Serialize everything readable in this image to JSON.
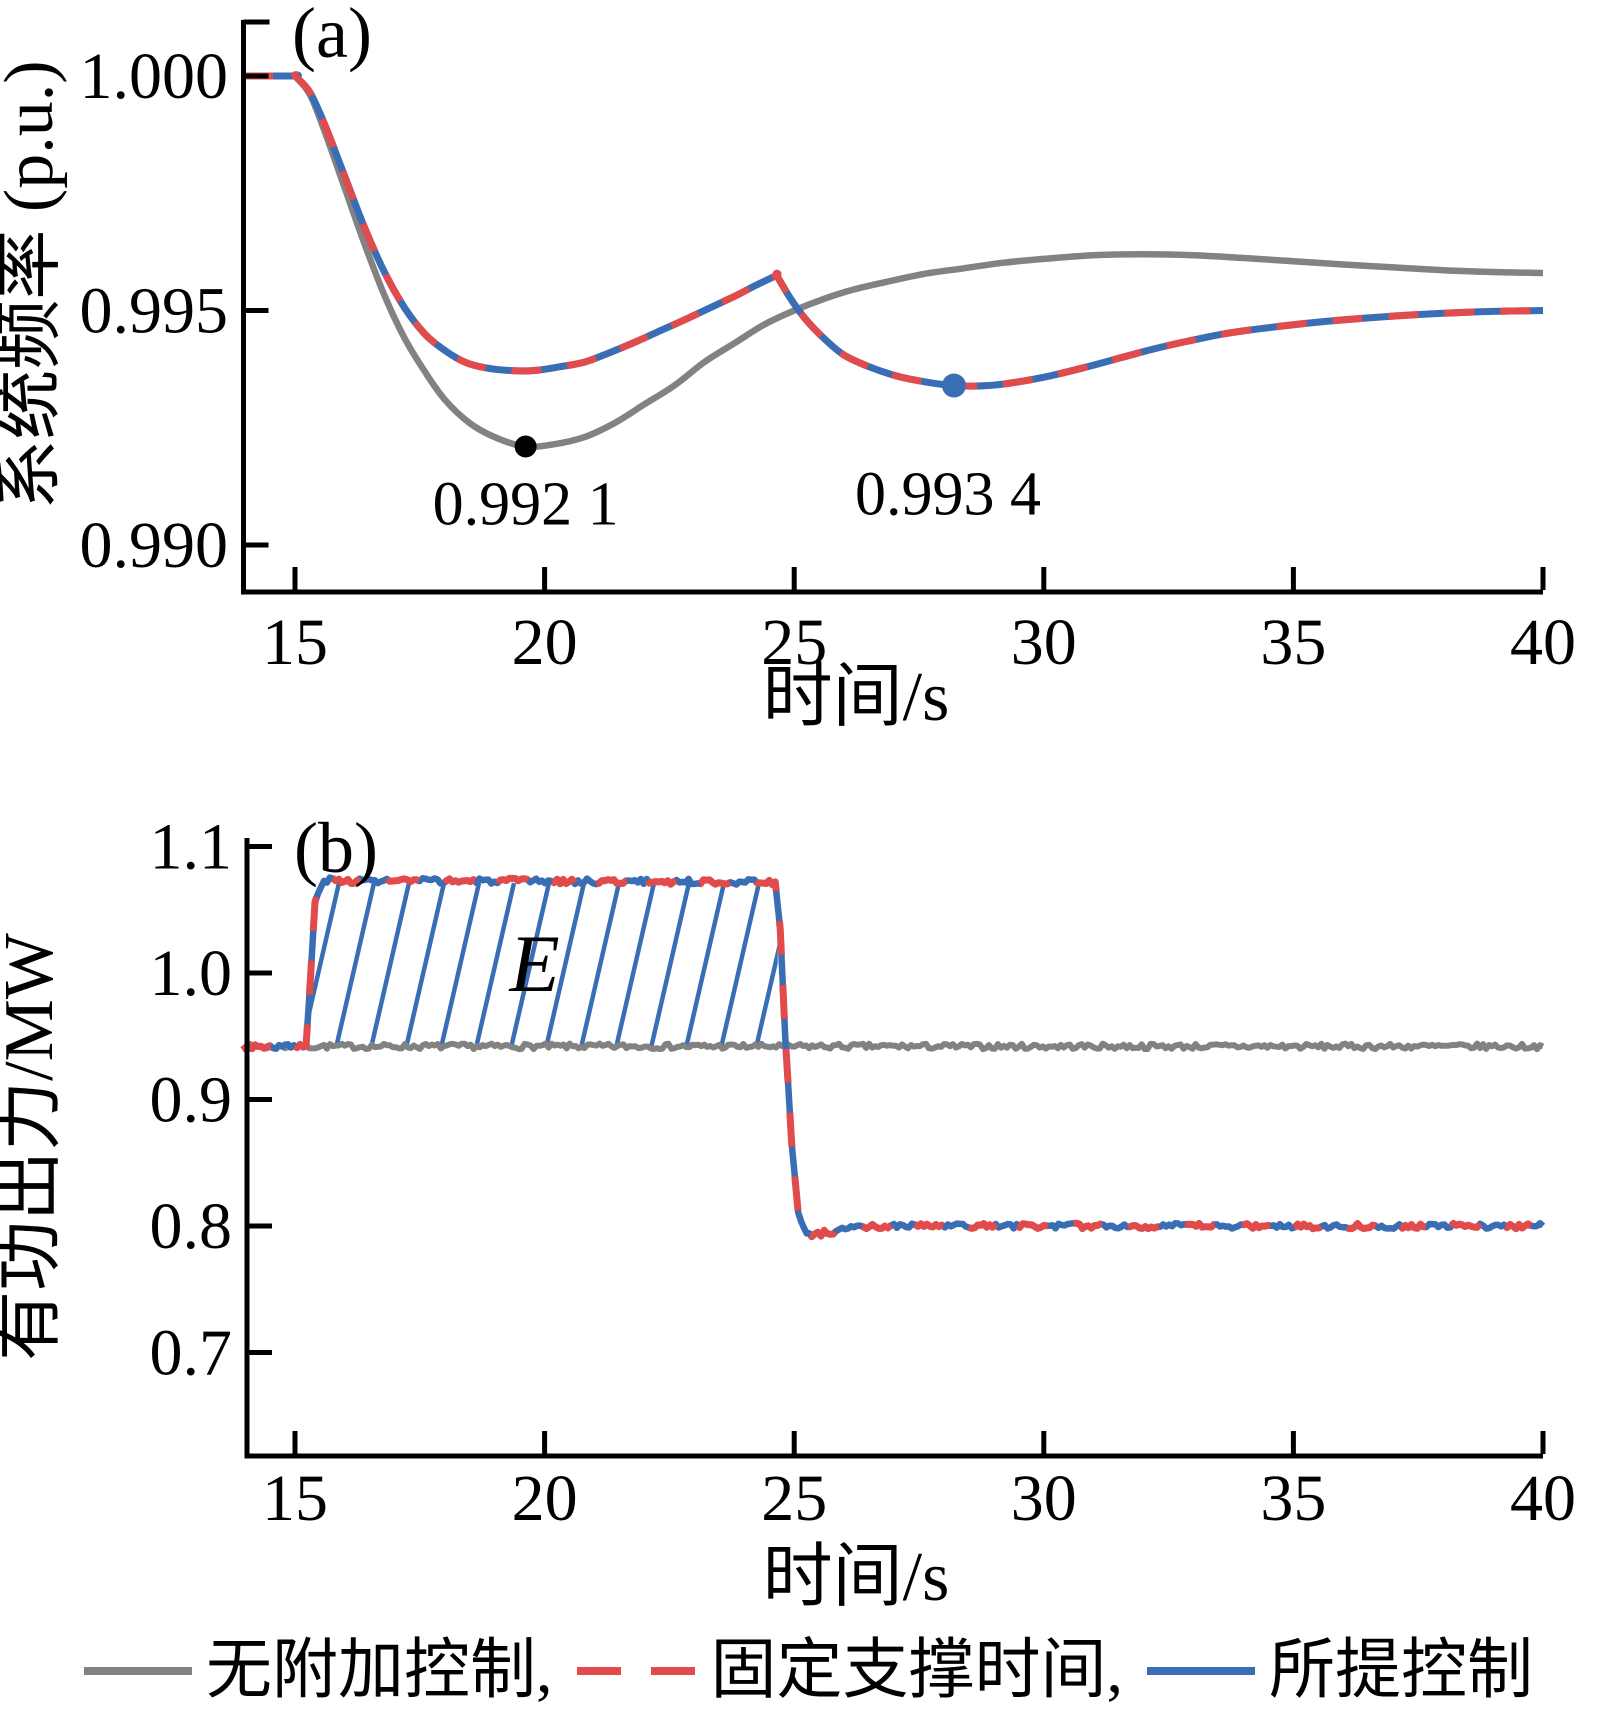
{
  "figure": {
    "background": "#ffffff"
  },
  "colors": {
    "no_control": "#828282",
    "fixed_time": "#e14b4b",
    "proposed": "#3a6eb4",
    "black": "#000000"
  },
  "legend": {
    "items": [
      {
        "key": "no_control",
        "style": "solid",
        "label": "无附加控制,"
      },
      {
        "key": "fixed_time",
        "style": "dashed",
        "label": "固定支撑时间,"
      },
      {
        "key": "proposed",
        "style": "solid",
        "label": "所提控制"
      }
    ]
  },
  "chart_data": [
    {
      "subplot_label": "(a)",
      "type": "line",
      "xlabel": "时间/s",
      "ylabel": "系统频率 (p.u.)",
      "xlim": [
        13.96,
        40
      ],
      "ylim": [
        0.989,
        1.0012
      ],
      "grid": false,
      "xticks": [
        {
          "value": 15,
          "label": "15"
        },
        {
          "value": 20,
          "label": "20"
        },
        {
          "value": 25,
          "label": "25"
        },
        {
          "value": 30,
          "label": "30"
        },
        {
          "value": 35,
          "label": "35"
        },
        {
          "value": 40,
          "label": "40"
        }
      ],
      "yticks": [
        {
          "value": 1.0,
          "label": "1.000"
        },
        {
          "value": 0.995,
          "label": "0.995"
        },
        {
          "value": 0.99,
          "label": "0.990"
        }
      ],
      "series": [
        {
          "name": "无附加控制",
          "key": "no_control",
          "smooth": true,
          "width": 6.5,
          "points": [
            [
              13.96,
              1.0
            ],
            [
              15,
              1.0
            ],
            [
              15,
              1.0
            ],
            [
              15.3,
              0.9996
            ],
            [
              15.6,
              0.9988
            ],
            [
              16,
              0.9976
            ],
            [
              16.4,
              0.9964
            ],
            [
              16.8,
              0.9953
            ],
            [
              17.2,
              0.9944
            ],
            [
              17.6,
              0.9937
            ],
            [
              18,
              0.9931
            ],
            [
              18.5,
              0.9926
            ],
            [
              19,
              0.9923
            ],
            [
              19.6,
              0.9921
            ],
            [
              20.2,
              0.99215
            ],
            [
              20.8,
              0.9923
            ],
            [
              21.4,
              0.9926
            ],
            [
              22,
              0.993
            ],
            [
              22.6,
              0.9934
            ],
            [
              23.2,
              0.9939
            ],
            [
              23.8,
              0.9943
            ],
            [
              24.4,
              0.9947
            ],
            [
              25,
              0.995
            ],
            [
              25.6,
              0.99525
            ],
            [
              26.2,
              0.99545
            ],
            [
              26.8,
              0.9956
            ],
            [
              27.6,
              0.99578
            ],
            [
              28.4,
              0.9959
            ],
            [
              29.2,
              0.99602
            ],
            [
              30,
              0.9961
            ],
            [
              31,
              0.99618
            ],
            [
              32,
              0.9962
            ],
            [
              33,
              0.99618
            ],
            [
              34,
              0.99612
            ],
            [
              35,
              0.99605
            ],
            [
              36,
              0.99598
            ],
            [
              37,
              0.99592
            ],
            [
              38,
              0.99586
            ],
            [
              39,
              0.99582
            ],
            [
              40,
              0.9958
            ]
          ]
        },
        {
          "name": "所提控制",
          "key": "proposed",
          "smooth": true,
          "width": 7,
          "dash_overlay": {
            "name": "固定支撑时间",
            "key": "fixed_time",
            "dash": [
              30,
              26
            ],
            "width": 7
          },
          "points": [
            [
              13.96,
              1.0
            ],
            [
              15,
              1.0
            ],
            [
              15,
              1.0
            ],
            [
              15.3,
              0.99965
            ],
            [
              15.6,
              0.99895
            ],
            [
              16,
              0.99785
            ],
            [
              16.4,
              0.99675
            ],
            [
              16.8,
              0.9958
            ],
            [
              17.2,
              0.99505
            ],
            [
              17.6,
              0.9945
            ],
            [
              18,
              0.99415
            ],
            [
              18.4,
              0.9939
            ],
            [
              18.8,
              0.99378
            ],
            [
              19.3,
              0.99372
            ],
            [
              19.8,
              0.99372
            ],
            [
              20.3,
              0.9938
            ],
            [
              20.8,
              0.9939
            ],
            [
              21.3,
              0.9941
            ],
            [
              21.8,
              0.99432
            ],
            [
              22.3,
              0.99456
            ],
            [
              22.8,
              0.9948
            ],
            [
              23.3,
              0.99505
            ],
            [
              23.8,
              0.9953
            ],
            [
              24.2,
              0.99552
            ],
            [
              24.65,
              0.99575
            ],
            [
              24.65,
              0.99575
            ],
            [
              24.9,
              0.9953
            ],
            [
              25.2,
              0.99485
            ],
            [
              25.6,
              0.9944
            ],
            [
              26,
              0.99405
            ],
            [
              26.5,
              0.9938
            ],
            [
              27,
              0.99362
            ],
            [
              27.5,
              0.9935
            ],
            [
              28.2,
              0.9934
            ],
            [
              28.9,
              0.9934
            ],
            [
              29.5,
              0.99348
            ],
            [
              30.1,
              0.9936
            ],
            [
              30.8,
              0.99378
            ],
            [
              31.5,
              0.99398
            ],
            [
              32.2,
              0.99418
            ],
            [
              32.9,
              0.99435
            ],
            [
              33.6,
              0.9945
            ],
            [
              34.4,
              0.99462
            ],
            [
              35.2,
              0.99472
            ],
            [
              36,
              0.9948
            ],
            [
              37,
              0.99488
            ],
            [
              38,
              0.99494
            ],
            [
              39,
              0.99498
            ],
            [
              40,
              0.995
            ]
          ]
        }
      ],
      "annotations": [
        {
          "label": "0.992 1",
          "t": 19.62,
          "value": 0.9921,
          "marker": "dot",
          "key": "black",
          "radius": 11,
          "label_offset": [
            0,
            78
          ]
        },
        {
          "label": "0.993 4",
          "t": 28.2,
          "value": 0.9934,
          "marker": "dot",
          "key": "proposed",
          "radius": 12,
          "label_offset": [
            -6,
            129
          ]
        }
      ]
    },
    {
      "subplot_label": "(b)",
      "type": "line",
      "xlabel": "时间/s",
      "ylabel": "有功出力/MW",
      "xlim": [
        13.96,
        40
      ],
      "ylim": [
        0.618,
        1.105
      ],
      "grid": false,
      "xticks": [
        {
          "value": 15,
          "label": "15"
        },
        {
          "value": 20,
          "label": "20"
        },
        {
          "value": 25,
          "label": "25"
        },
        {
          "value": 30,
          "label": "30"
        },
        {
          "value": 35,
          "label": "35"
        },
        {
          "value": 40,
          "label": "40"
        }
      ],
      "yticks": [
        {
          "value": 1.1,
          "label": "1.1"
        },
        {
          "value": 1.0,
          "label": "1.0"
        },
        {
          "value": 0.9,
          "label": "0.9"
        },
        {
          "value": 0.8,
          "label": "0.8"
        },
        {
          "value": 0.7,
          "label": "0.7"
        }
      ],
      "series": [
        {
          "name": "无附加控制",
          "key": "no_control",
          "smooth": false,
          "width": 6,
          "noise": 0.0022,
          "seed": 7,
          "anchors": [
            [
              13.96,
              0.942
            ],
            [
              40,
              0.942
            ]
          ]
        },
        {
          "name": "所提控制",
          "key": "proposed",
          "smooth": false,
          "width": 6.5,
          "noise": 0.0022,
          "seed": 3,
          "dash_overlay": {
            "name": "固定支撑时间",
            "key": "fixed_time",
            "dash": [
              34,
              30
            ],
            "width": 7
          },
          "anchors": [
            [
              13.96,
              0.942
            ],
            [
              15.22,
              0.942
            ],
            [
              15.3,
              0.99
            ],
            [
              15.4,
              1.055
            ],
            [
              15.52,
              1.07
            ],
            [
              15.7,
              1.0735
            ],
            [
              16,
              1.073
            ],
            [
              24.62,
              1.072
            ],
            [
              24.72,
              1.035
            ],
            [
              24.82,
              0.95
            ],
            [
              24.95,
              0.865
            ],
            [
              25.08,
              0.812
            ],
            [
              25.2,
              0.796
            ],
            [
              25.35,
              0.793
            ],
            [
              25.6,
              0.7945
            ],
            [
              26.2,
              0.7985
            ],
            [
              27,
              0.8
            ],
            [
              40,
              0.8
            ]
          ]
        }
      ],
      "hatch_region": {
        "label": "E",
        "t0": 15.32,
        "t1": 24.67,
        "v0": 0.943,
        "v1": 1.071,
        "key": "proposed",
        "spacing": 35,
        "slope_dx": 38,
        "slope_dy": -165,
        "label_t": 19.8,
        "label_value": 1.008
      },
      "annotations": []
    }
  ]
}
